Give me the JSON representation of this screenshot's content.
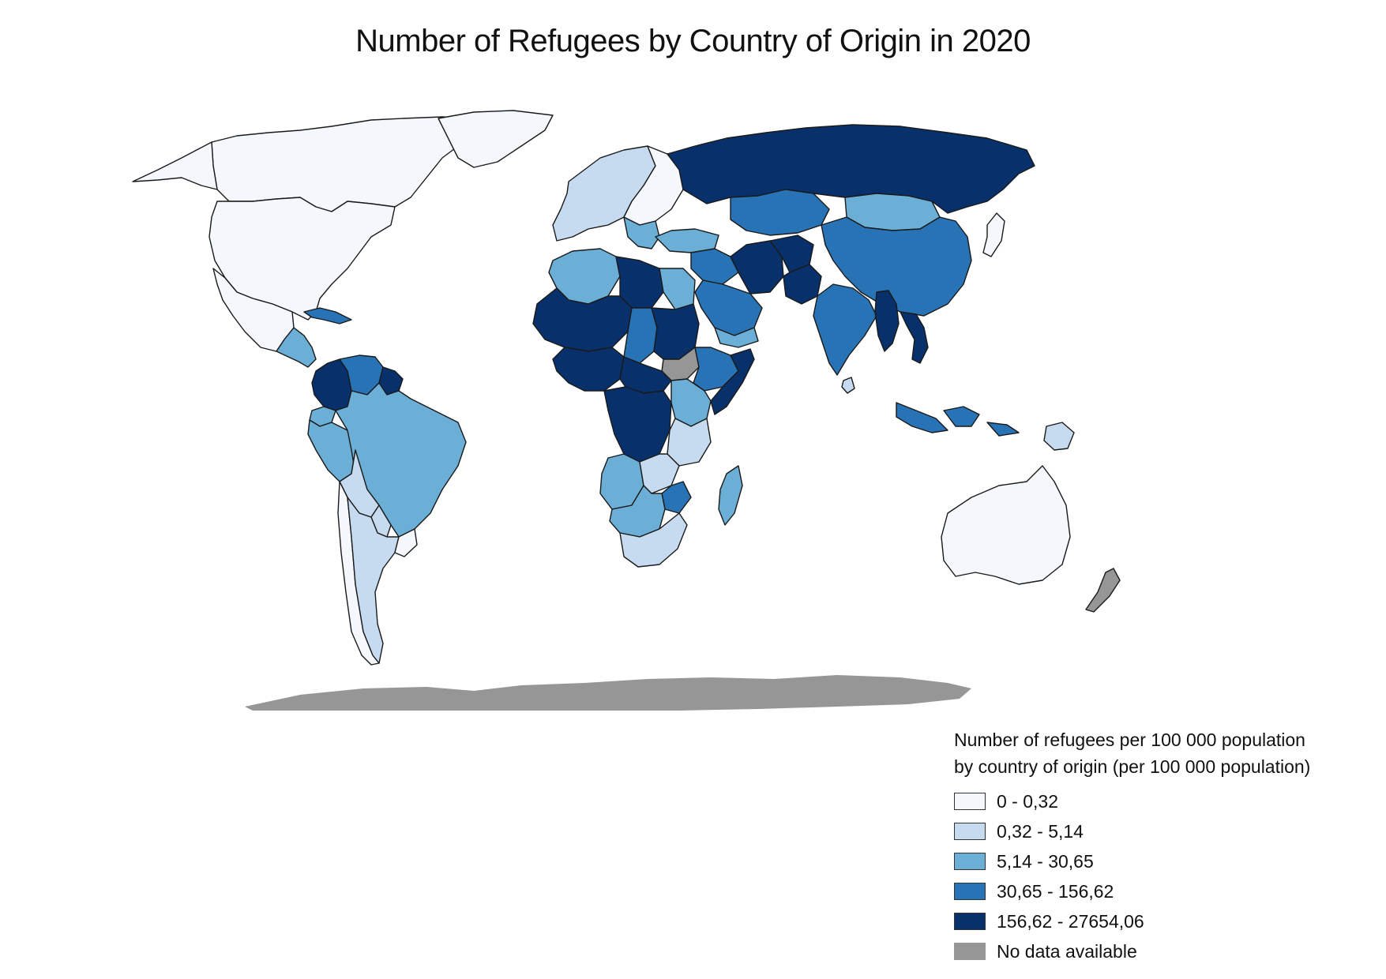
{
  "map": {
    "title": "Number of Refugees by Country of Origin in 2020",
    "legend": {
      "title_line1": "Number of refugees per 100 000 population",
      "title_line2": "by country of origin (per 100 000 population)",
      "classes": [
        {
          "label": "0 - 0,32",
          "color": "#f4f8fd"
        },
        {
          "label": "0,32 - 5,14",
          "color": "#c6dbef"
        },
        {
          "label": "5,14 - 30,65",
          "color": "#6baed6"
        },
        {
          "label": "30,65 - 156,62",
          "color": "#2873b5"
        },
        {
          "label": "156,62 - 27654,06",
          "color": "#08306b"
        },
        {
          "label": "No data available",
          "color": "#969696"
        }
      ]
    },
    "regions": [
      {
        "name": "Canada",
        "class": 0
      },
      {
        "name": "United States",
        "class": 0
      },
      {
        "name": "Alaska",
        "class": 0
      },
      {
        "name": "Greenland",
        "class": 0
      },
      {
        "name": "Mexico",
        "class": 2
      },
      {
        "name": "Central America",
        "class": 3
      },
      {
        "name": "Cuba",
        "class": 3
      },
      {
        "name": "Venezuela",
        "class": 4
      },
      {
        "name": "Colombia",
        "class": 4
      },
      {
        "name": "Guyana",
        "class": 2
      },
      {
        "name": "Ecuador",
        "class": 2
      },
      {
        "name": "Peru",
        "class": 2
      },
      {
        "name": "Brazil",
        "class": 1
      },
      {
        "name": "Bolivia",
        "class": 1
      },
      {
        "name": "Paraguay",
        "class": 1
      },
      {
        "name": "Argentina",
        "class": 0
      },
      {
        "name": "Chile",
        "class": 0
      },
      {
        "name": "Uruguay",
        "class": 1
      },
      {
        "name": "Western Europe",
        "class": 0
      },
      {
        "name": "Eastern Europe",
        "class": 2
      },
      {
        "name": "Balkans",
        "class": 4
      },
      {
        "name": "Russia",
        "class": 3
      },
      {
        "name": "Kazakhstan",
        "class": 2
      },
      {
        "name": "Mongolia",
        "class": 3
      },
      {
        "name": "China",
        "class": 2
      },
      {
        "name": "Turkey",
        "class": 3
      },
      {
        "name": "Syria and Iraq",
        "class": 4
      },
      {
        "name": "Iran",
        "class": 4
      },
      {
        "name": "Afghanistan",
        "class": 4
      },
      {
        "name": "Pakistan",
        "class": 3
      },
      {
        "name": "Saudi Arabia",
        "class": 2
      },
      {
        "name": "Yemen",
        "class": 3
      },
      {
        "name": "India",
        "class": 1
      },
      {
        "name": "Sri Lanka",
        "class": 4
      },
      {
        "name": "Myanmar",
        "class": 4
      },
      {
        "name": "Vietnam",
        "class": 3
      },
      {
        "name": "Indonesia",
        "class": 1
      },
      {
        "name": "Japan",
        "class": 0
      },
      {
        "name": "Australia",
        "class": 0
      },
      {
        "name": "New Zealand",
        "class": 1
      },
      {
        "name": "Papua New Guinea",
        "class": 5
      },
      {
        "name": "Morocco and Algeria",
        "class": 2
      },
      {
        "name": "Libya",
        "class": 4
      },
      {
        "name": "Egypt",
        "class": 2
      },
      {
        "name": "Mali and Niger",
        "class": 4
      },
      {
        "name": "Chad",
        "class": 3
      },
      {
        "name": "Sudan",
        "class": 4
      },
      {
        "name": "South Sudan",
        "class": 5
      },
      {
        "name": "Ethiopia",
        "class": 3
      },
      {
        "name": "Somalia",
        "class": 4
      },
      {
        "name": "Nigeria",
        "class": 4
      },
      {
        "name": "Central African Republic",
        "class": 4
      },
      {
        "name": "DR Congo",
        "class": 4
      },
      {
        "name": "Kenya",
        "class": 2
      },
      {
        "name": "Tanzania",
        "class": 1
      },
      {
        "name": "Angola",
        "class": 2
      },
      {
        "name": "Zambia",
        "class": 1
      },
      {
        "name": "Zimbabwe",
        "class": 3
      },
      {
        "name": "Namibia and Botswana",
        "class": 2
      },
      {
        "name": "South Africa",
        "class": 1
      },
      {
        "name": "Madagascar",
        "class": 2
      },
      {
        "name": "Antarctica",
        "class": 5
      }
    ]
  }
}
